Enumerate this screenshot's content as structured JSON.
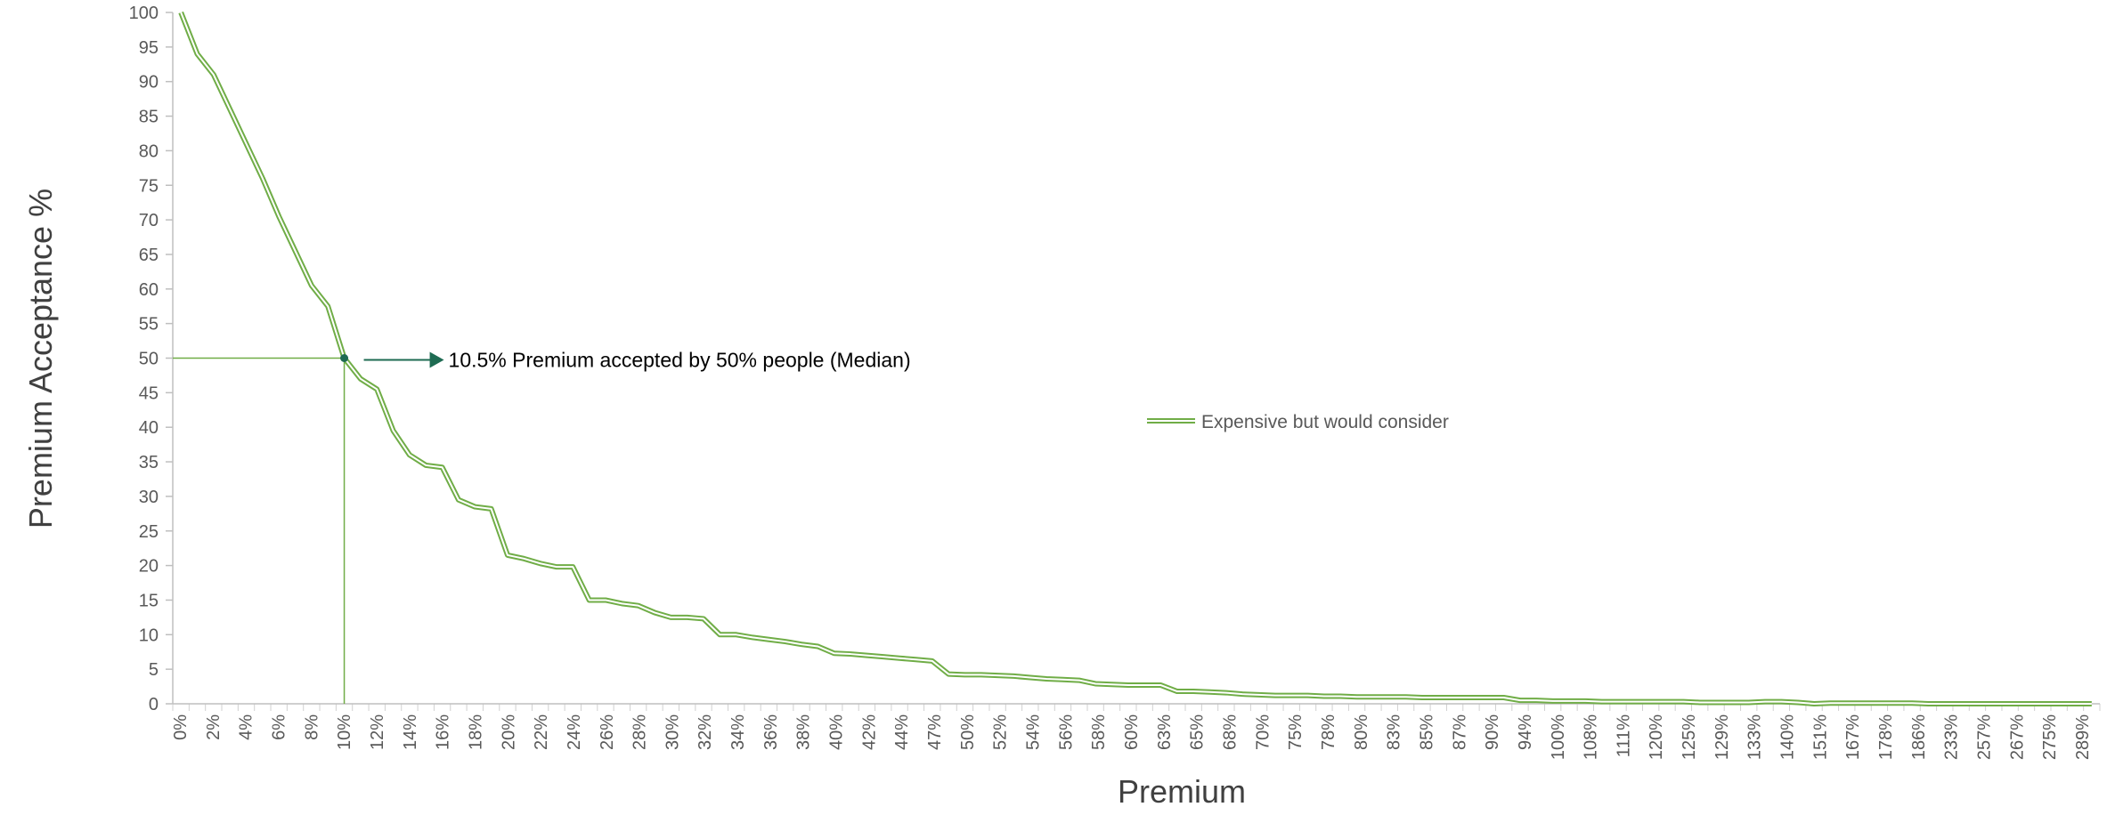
{
  "chart_data": {
    "type": "line",
    "xlabel": "Premium",
    "ylabel": "Premium Acceptance %",
    "ylim": [
      0,
      100
    ],
    "yticks": [
      0,
      5,
      10,
      15,
      20,
      25,
      30,
      35,
      40,
      45,
      50,
      55,
      60,
      65,
      70,
      75,
      80,
      85,
      90,
      95,
      100
    ],
    "grid": false,
    "legend_position": "right",
    "x_tick_labels": [
      "0%",
      "2%",
      "4%",
      "6%",
      "8%",
      "10%",
      "12%",
      "14%",
      "16%",
      "18%",
      "20%",
      "22%",
      "24%",
      "26%",
      "28%",
      "30%",
      "32%",
      "34%",
      "36%",
      "38%",
      "40%",
      "42%",
      "44%",
      "47%",
      "50%",
      "52%",
      "54%",
      "56%",
      "58%",
      "60%",
      "63%",
      "65%",
      "68%",
      "70%",
      "75%",
      "78%",
      "80%",
      "83%",
      "85%",
      "87%",
      "90%",
      "94%",
      "100%",
      "108%",
      "111%",
      "120%",
      "125%",
      "129%",
      "133%",
      "140%",
      "151%",
      "167%",
      "178%",
      "186%",
      "233%",
      "257%",
      "267%",
      "275%",
      "289%"
    ],
    "series": [
      {
        "name": "Expensive but would consider",
        "color": "#70AD47",
        "values": [
          100,
          94,
          91,
          86,
          81,
          76,
          70.5,
          65.5,
          60.5,
          57.5,
          50,
          47,
          45.5,
          39.5,
          36,
          34.5,
          34.2,
          29.5,
          28.5,
          28.2,
          21.5,
          21,
          20.3,
          19.8,
          19.8,
          15,
          15,
          14.5,
          14.2,
          13.2,
          12.5,
          12.5,
          12.3,
          10,
          10,
          9.6,
          9.3,
          9,
          8.6,
          8.3,
          7.3,
          7.2,
          7,
          6.8,
          6.6,
          6.4,
          6.2,
          4.3,
          4.2,
          4.2,
          4.1,
          4,
          3.8,
          3.6,
          3.5,
          3.4,
          2.9,
          2.8,
          2.7,
          2.7,
          2.7,
          1.8,
          1.8,
          1.7,
          1.6,
          1.4,
          1.3,
          1.2,
          1.2,
          1.2,
          1.1,
          1.1,
          1,
          1,
          1,
          1,
          0.9,
          0.9,
          0.9,
          0.9,
          0.9,
          0.9,
          0.5,
          0.5,
          0.4,
          0.4,
          0.4,
          0.3,
          0.3,
          0.3,
          0.3,
          0.3,
          0.3,
          0.2,
          0.2,
          0.2,
          0.2,
          0.3,
          0.3,
          0.2,
          0,
          0.1,
          0.1,
          0.1,
          0.1,
          0.1,
          0.1,
          0,
          0,
          0,
          0,
          0,
          0,
          0,
          0,
          0,
          0,
          0
        ]
      }
    ],
    "annotation": {
      "text": "10.5% Premium accepted by 50% people (Median)",
      "x_index": 10,
      "y": 50,
      "color": "#1E6B52"
    }
  }
}
